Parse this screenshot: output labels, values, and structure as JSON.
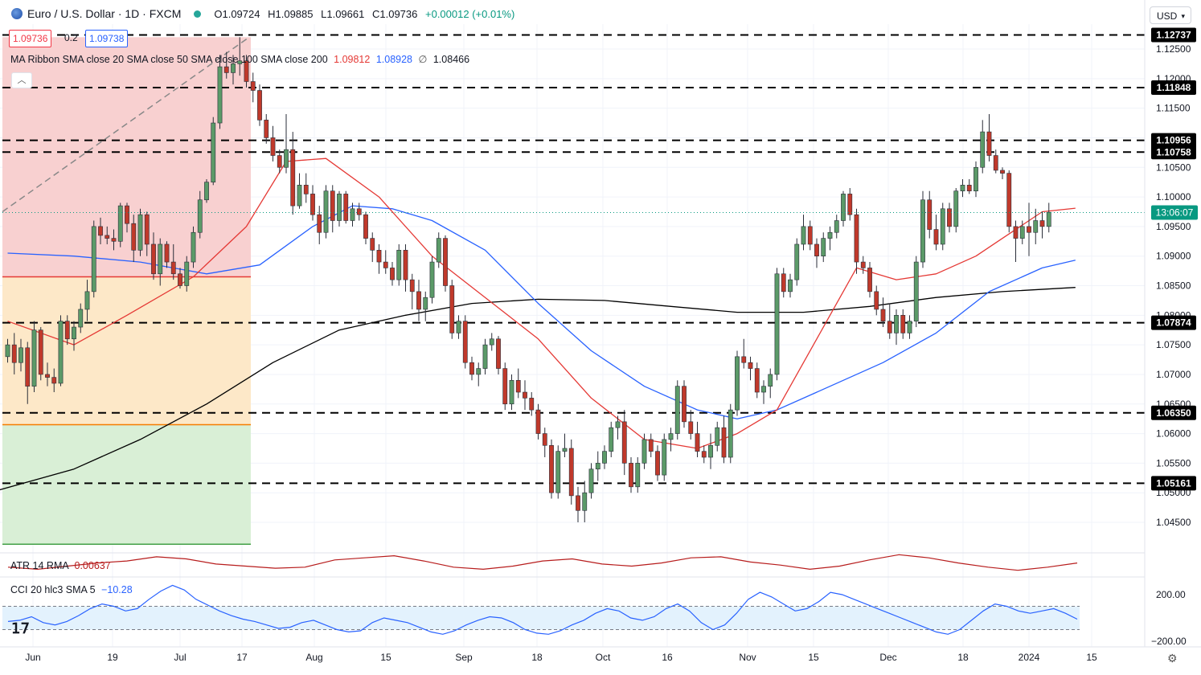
{
  "header": {
    "symbol_title": "Euro / U.S. Dollar · 1D · FXCM",
    "open": "O1.09724",
    "high": "H1.09885",
    "low": "L1.09661",
    "close": "C1.09736",
    "change": "+0.00012 (+0.01%)",
    "sell_price": "1.09736",
    "spread": "0.2",
    "buy_price": "1.09738"
  },
  "currency_button": "USD",
  "ribbon_legend": {
    "label": "MA Ribbon SMA close 20 SMA close 50 SMA close 100 SMA close 200",
    "v1": "1.09812",
    "v2": "1.08928",
    "v3": "∅",
    "v4": "1.08466"
  },
  "atr_legend": {
    "label": "ATR 14 RMA",
    "value": "0.00637"
  },
  "cci_legend": {
    "label": "CCI 20 hlc3 SMA 5",
    "value": "−10.28"
  },
  "colors": {
    "up": "#5b9a68",
    "down": "#c0392b",
    "sma20": "#e53935",
    "sma50": "#2962ff",
    "sma200": "#000000",
    "atr": "#b71c1c",
    "cci": "#2962ff",
    "fib_top": "#f8d0d0",
    "fib_mid": "#fde8c8",
    "fib_low": "#d9efd6"
  },
  "chart_data": {
    "type": "candlestick",
    "y_ticks": [
      "1.12500",
      "1.12000",
      "1.11500",
      "1.11000",
      "1.10500",
      "1.10000",
      "1.09500",
      "1.09000",
      "1.08500",
      "1.08000",
      "1.07500",
      "1.07000",
      "1.06500",
      "1.06000",
      "1.05500",
      "1.05000",
      "1.04500"
    ],
    "ylim": [
      1.0405,
      1.1305
    ],
    "x_ticks": [
      "Jun",
      "19",
      "Jul",
      "17",
      "Aug",
      "15",
      "Sep",
      "18",
      "Oct",
      "16",
      "Nov",
      "15",
      "Dec",
      "18",
      "2024",
      "15"
    ],
    "levels": [
      {
        "label": "1.12737",
        "value": 1.12737
      },
      {
        "label": "1.11848",
        "value": 1.11848
      },
      {
        "label": "1.10956",
        "value": 1.10956
      },
      {
        "label": "1.10758",
        "value": 1.10758
      },
      {
        "label": "1.07874",
        "value": 1.07874
      },
      {
        "label": "1.06350",
        "value": 1.0635
      },
      {
        "label": "1.05161",
        "value": 1.05161
      }
    ],
    "current_price_time": "13:06:07",
    "current_price": 1.09736,
    "candles": [
      [
        1.073,
        1.076,
        1.072,
        1.075
      ],
      [
        1.075,
        1.077,
        1.07,
        1.072
      ],
      [
        1.072,
        1.076,
        1.0705,
        1.0745
      ],
      [
        1.0745,
        1.0755,
        1.065,
        1.068
      ],
      [
        1.068,
        1.079,
        1.067,
        1.0775
      ],
      [
        1.0775,
        1.078,
        1.069,
        1.07
      ],
      [
        1.07,
        1.072,
        1.068,
        1.0695
      ],
      [
        1.0695,
        1.071,
        1.067,
        1.0685
      ],
      [
        1.0685,
        1.08,
        1.068,
        1.079
      ],
      [
        1.079,
        1.08,
        1.075,
        1.076
      ],
      [
        1.076,
        1.079,
        1.074,
        1.078
      ],
      [
        1.078,
        1.082,
        1.077,
        1.081
      ],
      [
        1.081,
        1.086,
        1.079,
        1.084
      ],
      [
        1.084,
        1.096,
        1.083,
        1.095
      ],
      [
        1.095,
        1.0965,
        1.092,
        1.0935
      ],
      [
        1.0935,
        1.095,
        1.092,
        1.093
      ],
      [
        1.093,
        1.0945,
        1.091,
        1.0925
      ],
      [
        1.0925,
        1.099,
        1.0915,
        1.0985
      ],
      [
        1.0985,
        1.099,
        1.094,
        1.0955
      ],
      [
        1.0955,
        1.097,
        1.089,
        1.091
      ],
      [
        1.091,
        1.098,
        1.09,
        1.097
      ],
      [
        1.097,
        1.0975,
        1.09,
        1.092
      ],
      [
        1.092,
        1.094,
        1.086,
        1.087
      ],
      [
        1.087,
        1.093,
        1.085,
        1.092
      ],
      [
        1.092,
        1.0925,
        1.088,
        1.089
      ],
      [
        1.089,
        1.092,
        1.086,
        1.087
      ],
      [
        1.087,
        1.088,
        1.0845,
        1.085
      ],
      [
        1.085,
        1.09,
        1.084,
        1.089
      ],
      [
        1.089,
        1.095,
        1.088,
        1.094
      ],
      [
        1.094,
        1.101,
        1.093,
        1.0995
      ],
      [
        1.0995,
        1.103,
        1.099,
        1.1025
      ],
      [
        1.1025,
        1.1135,
        1.102,
        1.1125
      ],
      [
        1.1125,
        1.124,
        1.1115,
        1.122
      ],
      [
        1.122,
        1.1245,
        1.12,
        1.121
      ],
      [
        1.121,
        1.124,
        1.119,
        1.1225
      ],
      [
        1.1225,
        1.127,
        1.1205,
        1.123
      ],
      [
        1.123,
        1.124,
        1.1185,
        1.1195
      ],
      [
        1.1195,
        1.121,
        1.116,
        1.118
      ],
      [
        1.118,
        1.119,
        1.112,
        1.113
      ],
      [
        1.113,
        1.114,
        1.109,
        1.11
      ],
      [
        1.11,
        1.112,
        1.106,
        1.107
      ],
      [
        1.107,
        1.108,
        1.104,
        1.105
      ],
      [
        1.105,
        1.114,
        1.104,
        1.108
      ],
      [
        1.108,
        1.111,
        1.097,
        1.0985
      ],
      [
        1.0985,
        1.104,
        1.098,
        1.102
      ],
      [
        1.102,
        1.104,
        1.099,
        1.1005
      ],
      [
        1.1005,
        1.102,
        1.096,
        1.097
      ],
      [
        1.097,
        1.0985,
        1.092,
        1.094
      ],
      [
        1.094,
        1.102,
        1.093,
        1.101
      ],
      [
        1.101,
        1.102,
        1.094,
        1.096
      ],
      [
        1.096,
        1.101,
        1.095,
        1.1005
      ],
      [
        1.1005,
        1.101,
        1.0955,
        1.096
      ],
      [
        1.096,
        1.099,
        1.095,
        1.098
      ],
      [
        1.098,
        1.099,
        1.096,
        1.097
      ],
      [
        1.097,
        1.0975,
        1.092,
        1.093
      ],
      [
        1.093,
        1.094,
        1.089,
        1.091
      ],
      [
        1.091,
        1.092,
        1.087,
        1.089
      ],
      [
        1.089,
        1.091,
        1.087,
        1.088
      ],
      [
        1.088,
        1.089,
        1.085,
        1.086
      ],
      [
        1.086,
        1.092,
        1.085,
        1.091
      ],
      [
        1.091,
        1.092,
        1.084,
        1.086
      ],
      [
        1.086,
        1.087,
        1.081,
        1.084
      ],
      [
        1.084,
        1.086,
        1.079,
        1.081
      ],
      [
        1.081,
        1.084,
        1.079,
        1.083
      ],
      [
        1.083,
        1.09,
        1.082,
        1.089
      ],
      [
        1.089,
        1.094,
        1.088,
        1.093
      ],
      [
        1.093,
        1.0935,
        1.084,
        1.085
      ],
      [
        1.085,
        1.086,
        1.076,
        1.077
      ],
      [
        1.077,
        1.08,
        1.076,
        1.079
      ],
      [
        1.079,
        1.08,
        1.071,
        1.072
      ],
      [
        1.072,
        1.073,
        1.069,
        1.07
      ],
      [
        1.07,
        1.072,
        1.068,
        1.071
      ],
      [
        1.071,
        1.076,
        1.07,
        1.075
      ],
      [
        1.075,
        1.077,
        1.074,
        1.076
      ],
      [
        1.076,
        1.0765,
        1.07,
        1.071
      ],
      [
        1.071,
        1.072,
        1.064,
        1.065
      ],
      [
        1.065,
        1.07,
        1.064,
        1.069
      ],
      [
        1.069,
        1.071,
        1.066,
        1.067
      ],
      [
        1.067,
        1.069,
        1.064,
        1.066
      ],
      [
        1.066,
        1.067,
        1.063,
        1.064
      ],
      [
        1.064,
        1.065,
        1.059,
        1.06
      ],
      [
        1.06,
        1.061,
        1.056,
        1.058
      ],
      [
        1.058,
        1.059,
        1.049,
        1.05
      ],
      [
        1.05,
        1.058,
        1.049,
        1.057
      ],
      [
        1.057,
        1.06,
        1.056,
        1.0575
      ],
      [
        1.0575,
        1.059,
        1.048,
        1.0495
      ],
      [
        1.0495,
        1.051,
        1.045,
        1.047
      ],
      [
        1.047,
        1.052,
        1.045,
        1.05
      ],
      [
        1.05,
        1.055,
        1.049,
        1.054
      ],
      [
        1.054,
        1.057,
        1.052,
        1.055
      ],
      [
        1.055,
        1.058,
        1.054,
        1.057
      ],
      [
        1.057,
        1.062,
        1.056,
        1.061
      ],
      [
        1.061,
        1.063,
        1.059,
        1.062
      ],
      [
        1.062,
        1.064,
        1.053,
        1.055
      ],
      [
        1.055,
        1.056,
        1.05,
        1.051
      ],
      [
        1.051,
        1.056,
        1.05,
        1.055
      ],
      [
        1.055,
        1.06,
        1.054,
        1.059
      ],
      [
        1.059,
        1.06,
        1.056,
        1.057
      ],
      [
        1.057,
        1.058,
        1.052,
        1.053
      ],
      [
        1.053,
        1.06,
        1.052,
        1.059
      ],
      [
        1.059,
        1.061,
        1.057,
        1.06
      ],
      [
        1.06,
        1.069,
        1.059,
        1.068
      ],
      [
        1.068,
        1.069,
        1.061,
        1.062
      ],
      [
        1.062,
        1.064,
        1.059,
        1.06
      ],
      [
        1.06,
        1.062,
        1.056,
        1.057
      ],
      [
        1.057,
        1.058,
        1.055,
        1.056
      ],
      [
        1.056,
        1.06,
        1.054,
        1.058
      ],
      [
        1.058,
        1.062,
        1.057,
        1.061
      ],
      [
        1.061,
        1.063,
        1.055,
        1.056
      ],
      [
        1.056,
        1.065,
        1.055,
        1.064
      ],
      [
        1.064,
        1.074,
        1.063,
        1.073
      ],
      [
        1.073,
        1.076,
        1.071,
        1.072
      ],
      [
        1.072,
        1.073,
        1.069,
        1.071
      ],
      [
        1.071,
        1.072,
        1.066,
        1.067
      ],
      [
        1.067,
        1.069,
        1.065,
        1.068
      ],
      [
        1.068,
        1.071,
        1.066,
        1.07
      ],
      [
        1.07,
        1.088,
        1.069,
        1.087
      ],
      [
        1.087,
        1.088,
        1.083,
        1.084
      ],
      [
        1.084,
        1.087,
        1.083,
        1.086
      ],
      [
        1.086,
        1.093,
        1.085,
        1.092
      ],
      [
        1.092,
        1.097,
        1.091,
        1.095
      ],
      [
        1.095,
        1.096,
        1.091,
        1.092
      ],
      [
        1.092,
        1.093,
        1.088,
        1.09
      ],
      [
        1.09,
        1.094,
        1.089,
        1.093
      ],
      [
        1.093,
        1.095,
        1.091,
        1.094
      ],
      [
        1.094,
        1.097,
        1.093,
        1.096
      ],
      [
        1.096,
        1.101,
        1.095,
        1.1005
      ],
      [
        1.1005,
        1.1015,
        1.096,
        1.097
      ],
      [
        1.097,
        1.098,
        1.087,
        1.089
      ],
      [
        1.089,
        1.09,
        1.087,
        1.088
      ],
      [
        1.088,
        1.089,
        1.083,
        1.084
      ],
      [
        1.084,
        1.085,
        1.08,
        1.081
      ],
      [
        1.081,
        1.083,
        1.078,
        1.079
      ],
      [
        1.079,
        1.082,
        1.076,
        1.077
      ],
      [
        1.077,
        1.081,
        1.075,
        1.08
      ],
      [
        1.08,
        1.081,
        1.076,
        1.077
      ],
      [
        1.077,
        1.08,
        1.076,
        1.079
      ],
      [
        1.079,
        1.09,
        1.078,
        1.089
      ],
      [
        1.089,
        1.101,
        1.088,
        1.0995
      ],
      [
        1.0995,
        1.101,
        1.093,
        1.0945
      ],
      [
        1.0945,
        1.097,
        1.091,
        1.092
      ],
      [
        1.092,
        1.099,
        1.091,
        1.098
      ],
      [
        1.098,
        1.099,
        1.094,
        1.095
      ],
      [
        1.095,
        1.1015,
        1.094,
        1.101
      ],
      [
        1.101,
        1.103,
        1.1,
        1.102
      ],
      [
        1.102,
        1.103,
        1.1005,
        1.101
      ],
      [
        1.101,
        1.106,
        1.1,
        1.105
      ],
      [
        1.105,
        1.113,
        1.104,
        1.111
      ],
      [
        1.111,
        1.114,
        1.106,
        1.107
      ],
      [
        1.107,
        1.108,
        1.104,
        1.1045
      ],
      [
        1.1045,
        1.105,
        1.103,
        1.104
      ],
      [
        1.104,
        1.1045,
        1.094,
        1.095
      ],
      [
        1.095,
        1.096,
        1.089,
        1.093
      ],
      [
        1.093,
        1.096,
        1.092,
        1.095
      ],
      [
        1.095,
        1.099,
        1.09,
        1.094
      ],
      [
        1.094,
        1.098,
        1.092,
        1.096
      ],
      [
        1.096,
        1.0975,
        1.093,
        1.095
      ],
      [
        1.095,
        1.099,
        1.094,
        1.0974
      ]
    ],
    "sma20": [
      [
        0,
        1.079
      ],
      [
        10,
        1.075
      ],
      [
        18,
        1.08
      ],
      [
        28,
        1.0865
      ],
      [
        36,
        1.095
      ],
      [
        42,
        1.106
      ],
      [
        48,
        1.1065
      ],
      [
        56,
        1.1
      ],
      [
        64,
        1.09
      ],
      [
        72,
        1.083
      ],
      [
        80,
        1.076
      ],
      [
        88,
        1.066
      ],
      [
        96,
        1.059
      ],
      [
        104,
        1.0575
      ],
      [
        110,
        1.06
      ],
      [
        116,
        1.064
      ],
      [
        122,
        1.076
      ],
      [
        128,
        1.088
      ],
      [
        134,
        1.086
      ],
      [
        140,
        1.087
      ],
      [
        146,
        1.09
      ],
      [
        150,
        1.093
      ],
      [
        156,
        1.0975
      ],
      [
        161,
        1.0981
      ]
    ],
    "sma50": [
      [
        0,
        1.0905
      ],
      [
        10,
        1.09
      ],
      [
        20,
        1.089
      ],
      [
        30,
        1.087
      ],
      [
        38,
        1.0885
      ],
      [
        46,
        1.095
      ],
      [
        52,
        1.0985
      ],
      [
        58,
        1.098
      ],
      [
        64,
        1.096
      ],
      [
        72,
        1.091
      ],
      [
        80,
        1.082
      ],
      [
        88,
        1.074
      ],
      [
        96,
        1.068
      ],
      [
        104,
        1.064
      ],
      [
        110,
        1.0625
      ],
      [
        116,
        1.064
      ],
      [
        124,
        1.068
      ],
      [
        132,
        1.072
      ],
      [
        140,
        1.077
      ],
      [
        148,
        1.084
      ],
      [
        156,
        1.088
      ],
      [
        161,
        1.0893
      ]
    ],
    "sma200": [
      [
        -6,
        1.049
      ],
      [
        10,
        1.054
      ],
      [
        20,
        1.059
      ],
      [
        30,
        1.065
      ],
      [
        40,
        1.072
      ],
      [
        50,
        1.0775
      ],
      [
        60,
        1.08
      ],
      [
        70,
        1.082
      ],
      [
        80,
        1.0827
      ],
      [
        90,
        1.0825
      ],
      [
        100,
        1.0815
      ],
      [
        110,
        1.0805
      ],
      [
        120,
        1.0805
      ],
      [
        130,
        1.0815
      ],
      [
        140,
        1.083
      ],
      [
        150,
        1.084
      ],
      [
        161,
        1.0847
      ]
    ],
    "fib_zones": [
      {
        "from": 1.127,
        "to": 1.0865,
        "color": "fib_top"
      },
      {
        "from": 1.0865,
        "to": 1.0615,
        "color": "fib_mid"
      },
      {
        "from": 1.0615,
        "to": 1.0413,
        "color": "fib_low"
      }
    ],
    "atr_points": [
      0.006,
      0.0058,
      0.0061,
      0.0064,
      0.0066,
      0.007,
      0.0068,
      0.0063,
      0.0061,
      0.0059,
      0.006,
      0.0067,
      0.0069,
      0.0071,
      0.0066,
      0.006,
      0.0058,
      0.0061,
      0.0066,
      0.0068,
      0.0063,
      0.0061,
      0.0064,
      0.0069,
      0.007,
      0.0065,
      0.0062,
      0.0058,
      0.0061,
      0.0067,
      0.0072,
      0.0069,
      0.0064,
      0.006,
      0.0057,
      0.006,
      0.0064
    ],
    "cci": {
      "ticks": [
        "200.00",
        "−200.00"
      ],
      "values": [
        -30,
        -20,
        10,
        -40,
        -60,
        -30,
        20,
        80,
        120,
        100,
        60,
        80,
        160,
        230,
        280,
        240,
        160,
        110,
        60,
        20,
        -10,
        -30,
        -60,
        -90,
        -80,
        -40,
        -20,
        -60,
        -100,
        -120,
        -110,
        -40,
        0,
        -20,
        -40,
        -80,
        -120,
        -140,
        -110,
        -60,
        -20,
        10,
        0,
        -40,
        -100,
        -130,
        -140,
        -110,
        -60,
        -20,
        40,
        80,
        60,
        0,
        -20,
        10,
        80,
        120,
        60,
        -40,
        -100,
        -60,
        40,
        160,
        220,
        180,
        120,
        60,
        80,
        140,
        220,
        200,
        160,
        120,
        80,
        40,
        0,
        -40,
        -80,
        -120,
        -140,
        -100,
        -20,
        60,
        120,
        100,
        60,
        40,
        60,
        80,
        40,
        -10
      ]
    }
  }
}
